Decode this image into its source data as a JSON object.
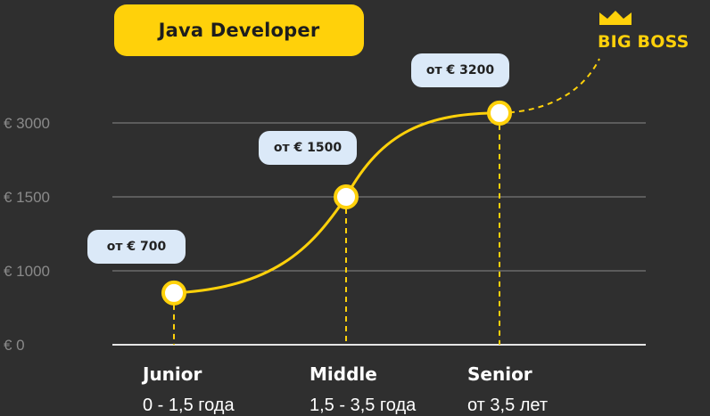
{
  "title": "Java Developer",
  "badge": {
    "label": "BIG BOSS",
    "icon": "crown-icon"
  },
  "colors": {
    "background": "#2f2f2f",
    "accent": "#ffd10a",
    "grid": "#8a8a8a",
    "tag_bg": "#dbe9f8",
    "axis_label": "#8a8a8a"
  },
  "chart_data": {
    "type": "line",
    "title": "Java Developer",
    "y_ticks": [
      "€ 0",
      "€ 1000",
      "€ 1500",
      "€ 3000"
    ],
    "categories": [
      "Junior",
      "Middle",
      "Senior"
    ],
    "experience": [
      "0 - 1,5 года",
      "1,5 - 3,5 года",
      "от 3,5 лет"
    ],
    "values": [
      700,
      1500,
      3200
    ],
    "point_labels": [
      "от € 700",
      "от € 1500",
      "от € 3200"
    ],
    "grid": true,
    "extension_label": "BIG BOSS"
  }
}
